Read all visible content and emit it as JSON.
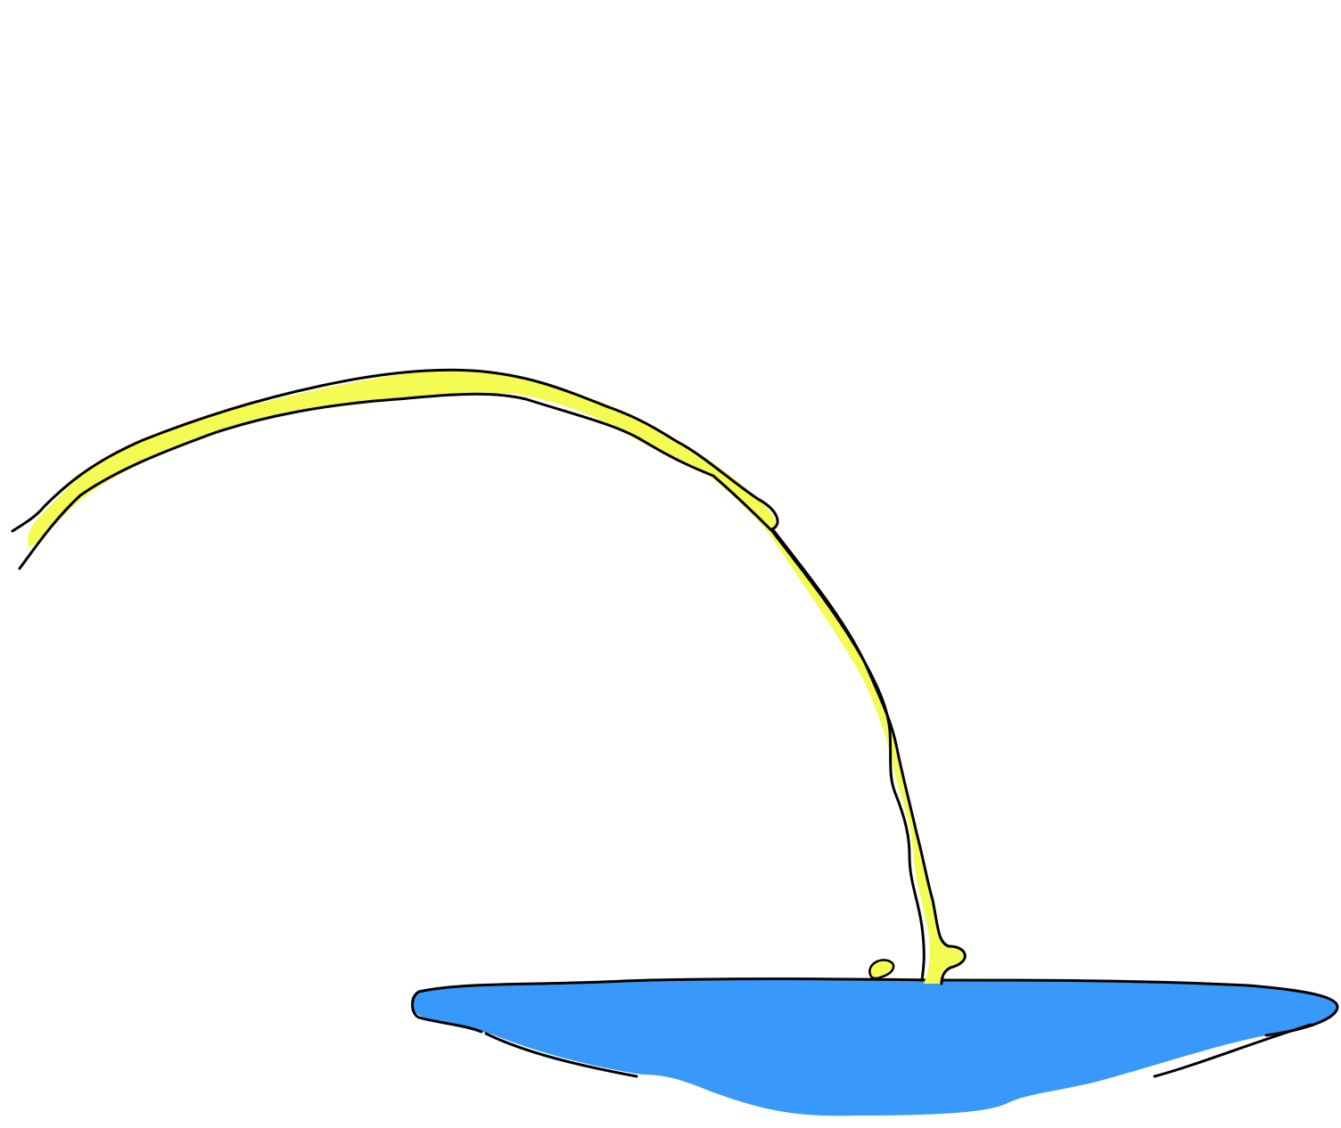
{
  "scene": {
    "background_color": "#ffffff",
    "stream": {
      "icon": "arc-stream-icon",
      "fill_color": "#f4fb52",
      "outline_color": "#000000"
    },
    "droplet": {
      "icon": "droplet-icon",
      "fill_color": "#f4fb52",
      "outline_color": "#000000"
    },
    "puddle": {
      "icon": "puddle-icon",
      "fill_color": "#3899fb",
      "outline_color": "#000000"
    }
  }
}
